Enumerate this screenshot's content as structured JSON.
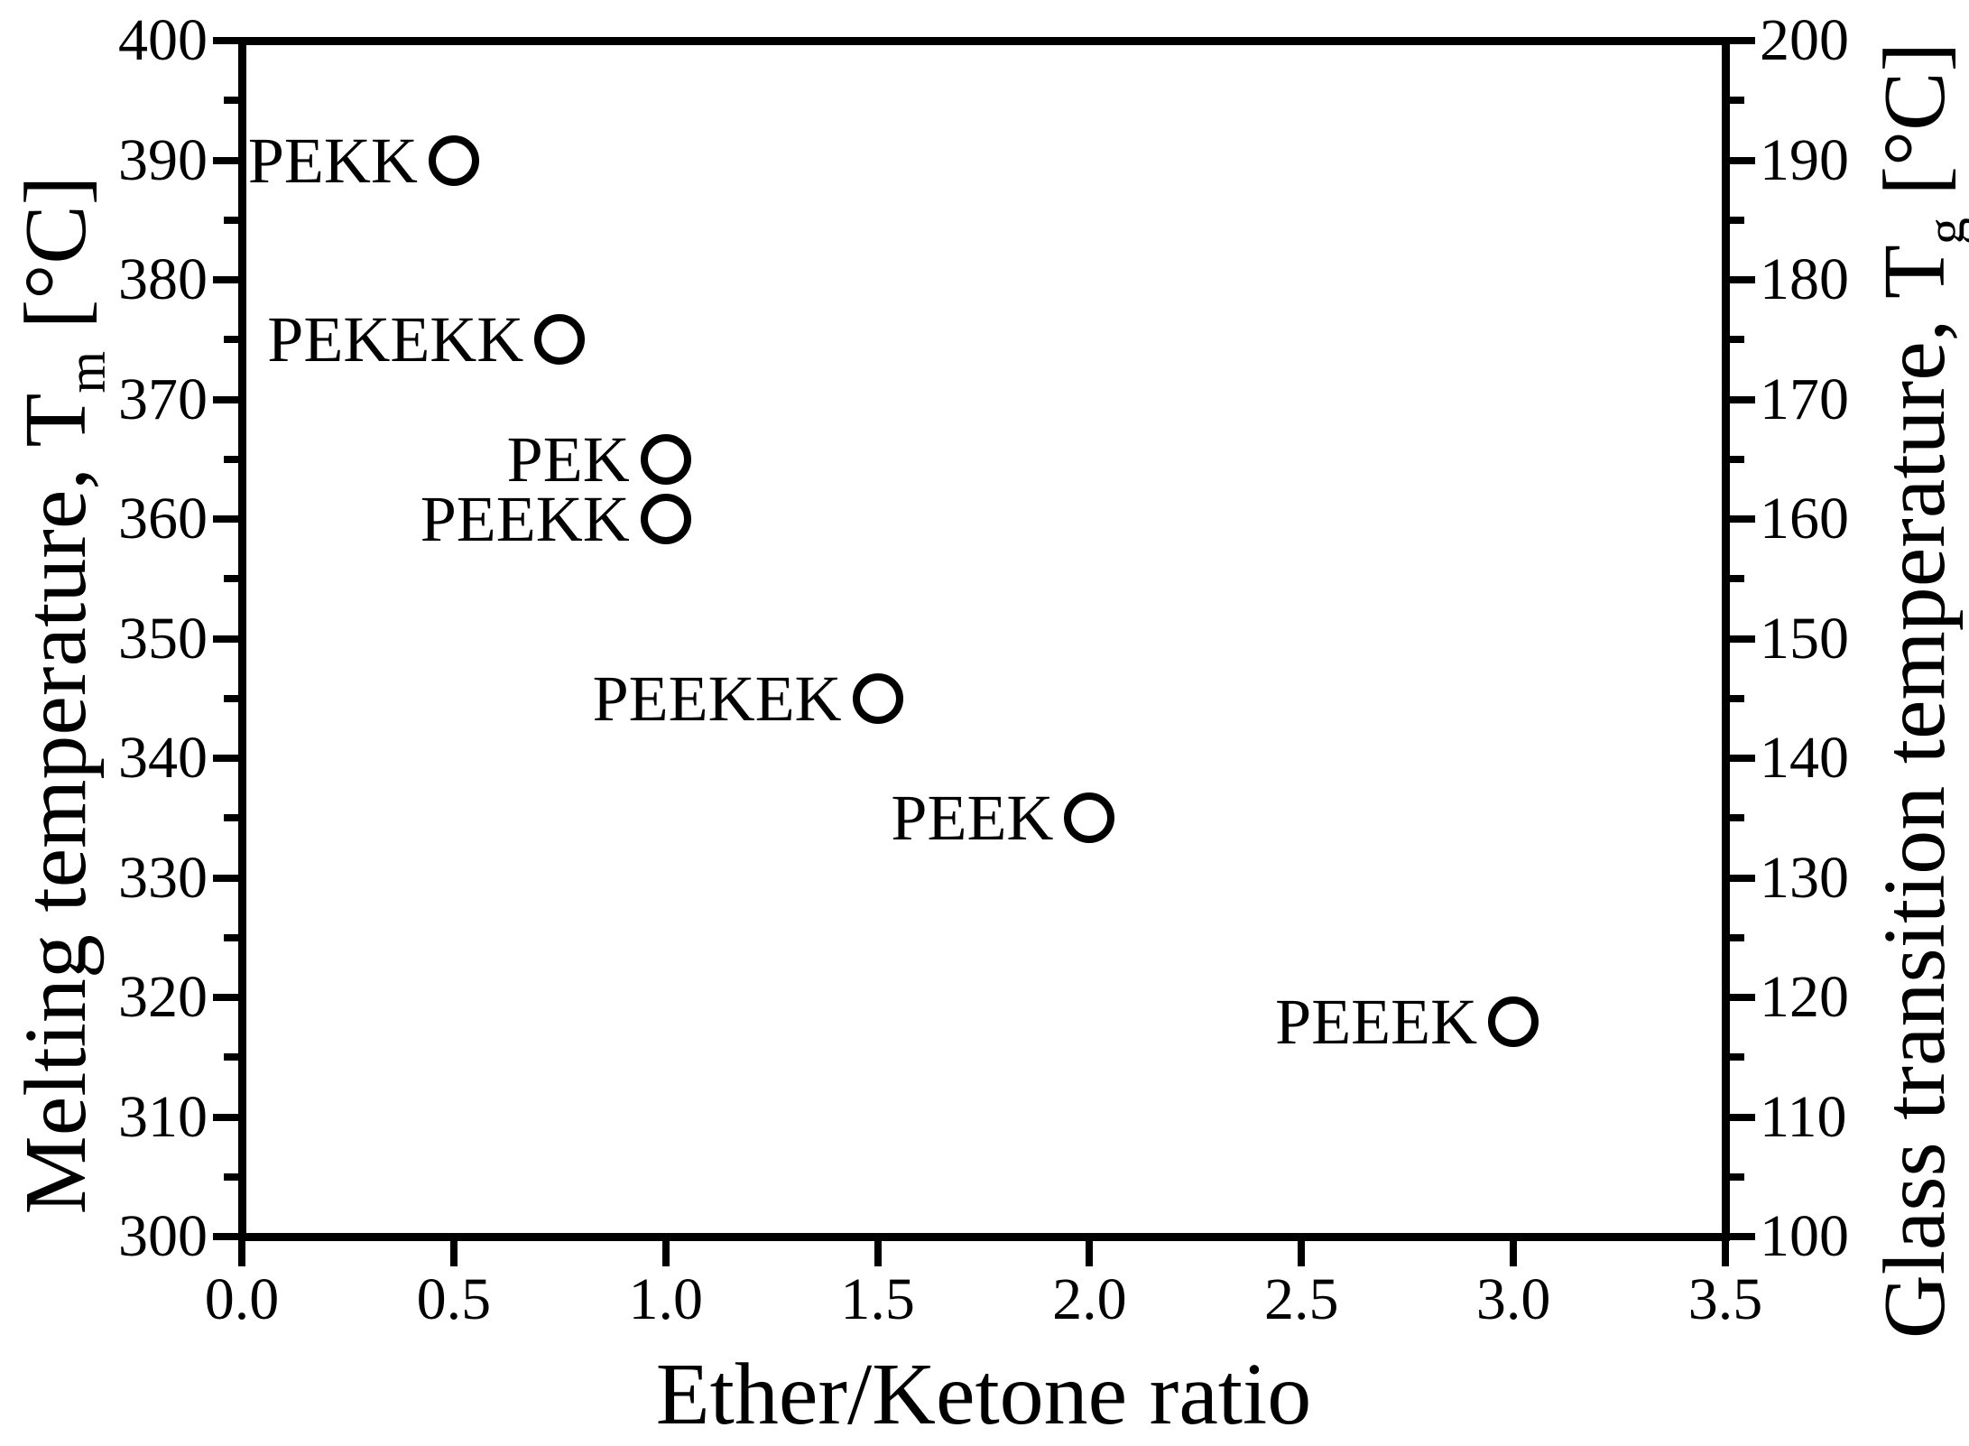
{
  "chart_data": {
    "type": "scatter",
    "title": "",
    "xlabel": "Ether/Ketone ratio",
    "ylabel_left": {
      "main": "Melting temperature, T",
      "sub": "m",
      "unit": " [°C]"
    },
    "ylabel_right": {
      "main": "Glass transition temperature, T",
      "sub": "g",
      "unit": " [°C]"
    },
    "xlim": [
      0.0,
      3.5
    ],
    "ylim_left": [
      300,
      400
    ],
    "ylim_right": [
      100,
      200
    ],
    "grid": false,
    "legend": null,
    "marker": "open-circle",
    "colors": {
      "foreground": "#000000",
      "background": "#ffffff"
    },
    "x_tick_values": [
      0.0,
      0.5,
      1.0,
      1.5,
      2.0,
      2.5,
      3.0,
      3.5
    ],
    "x_tick_labels": [
      "0.0",
      "0.5",
      "1.0",
      "1.5",
      "2.0",
      "2.5",
      "3.0",
      "3.5"
    ],
    "y_left_tick_values": [
      300,
      310,
      320,
      330,
      340,
      350,
      360,
      370,
      380,
      390,
      400
    ],
    "y_left_tick_labels": [
      "300",
      "310",
      "320",
      "330",
      "340",
      "350",
      "360",
      "370",
      "380",
      "390",
      "400"
    ],
    "y_left_minor_tick_values": [
      305,
      315,
      325,
      335,
      345,
      355,
      365,
      375,
      385,
      395
    ],
    "y_right_tick_values": [
      100,
      110,
      120,
      130,
      140,
      150,
      160,
      170,
      180,
      190,
      200
    ],
    "y_right_tick_labels": [
      "100",
      "110",
      "120",
      "130",
      "140",
      "150",
      "160",
      "170",
      "180",
      "190",
      "200"
    ],
    "y_right_minor_tick_values": [
      105,
      115,
      125,
      135,
      145,
      155,
      165,
      175,
      185,
      195
    ],
    "points": [
      {
        "label": "PEKK",
        "x": 0.5,
        "tm_c": 390,
        "tg_c": 190
      },
      {
        "label": "PEKEKK",
        "x": 0.75,
        "tm_c": 375,
        "tg_c": 175
      },
      {
        "label": "PEK",
        "x": 1.0,
        "tm_c": 365,
        "tg_c": 165
      },
      {
        "label": "PEEKK",
        "x": 1.0,
        "tm_c": 360,
        "tg_c": 160
      },
      {
        "label": "PEEKEK",
        "x": 1.5,
        "tm_c": 345,
        "tg_c": 145
      },
      {
        "label": "PEEK",
        "x": 2.0,
        "tm_c": 335,
        "tg_c": 135
      },
      {
        "label": "PEEEK",
        "x": 3.0,
        "tm_c": 318,
        "tg_c": 118
      }
    ]
  }
}
